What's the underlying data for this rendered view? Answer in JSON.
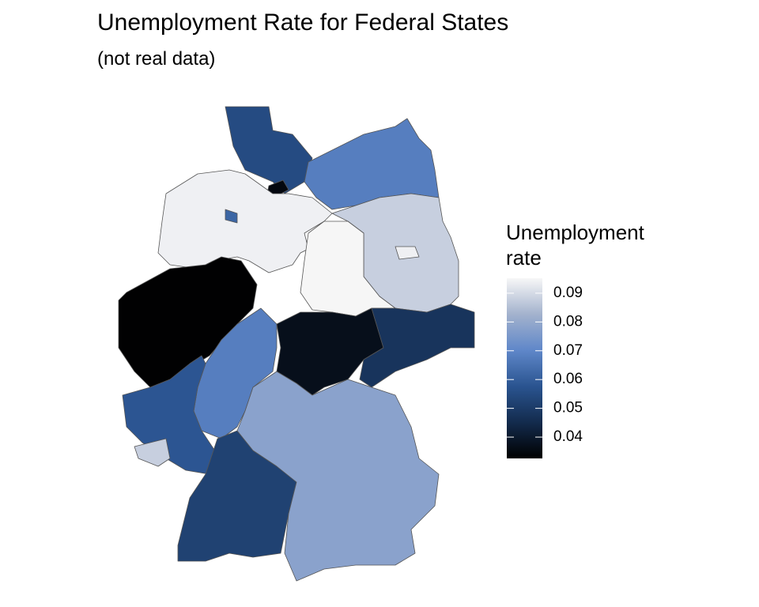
{
  "chart_data": {
    "type": "choropleth",
    "title": "Unemployment Rate for Federal States",
    "subtitle": "(not real data)",
    "legend_title": "Unemployment rate",
    "values": [
      0.055,
      0.035,
      0.068,
      0.094,
      0.062,
      0.088,
      0.094,
      0.095,
      0.033,
      0.068,
      0.037,
      0.048,
      0.058,
      0.088,
      0.052,
      0.078
    ],
    "colors": [
      "#000000",
      "#132b4d",
      "#2a5490",
      "#5f87c9",
      "#a3b2cd",
      "#f7f7f7"
    ],
    "limits": [
      0.0326,
      0.0952
    ],
    "ticks": [
      0.04,
      0.05,
      0.06,
      0.07,
      0.08,
      0.09
    ]
  }
}
